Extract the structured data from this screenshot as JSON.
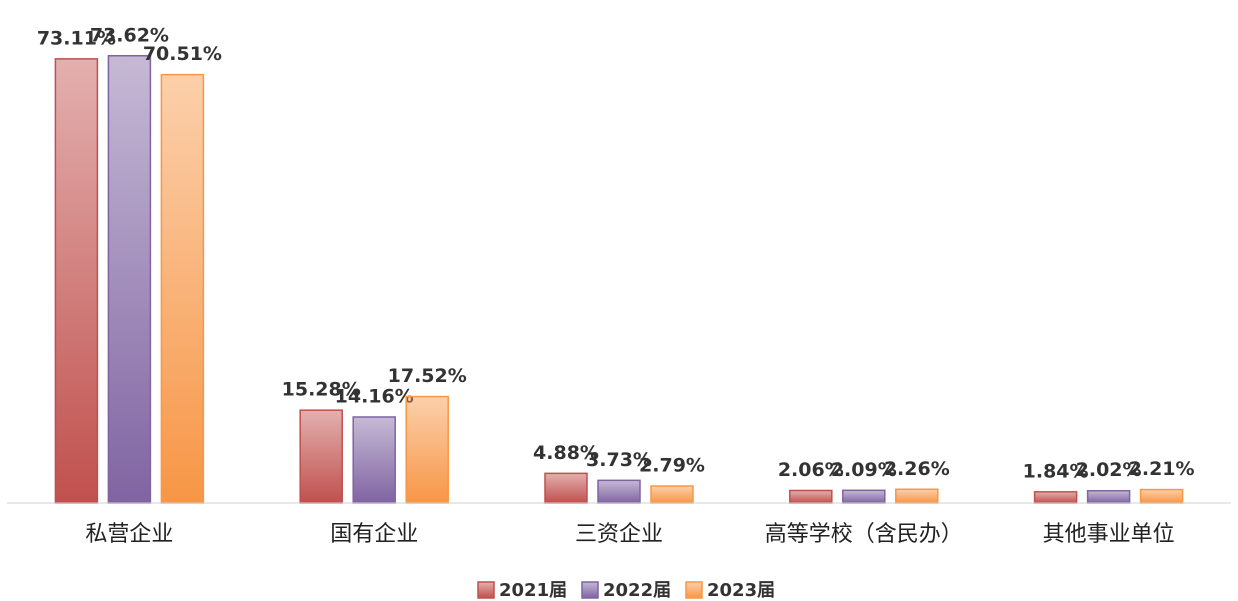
{
  "chart_data": {
    "type": "bar",
    "categories": [
      "私营企业",
      "国有企业",
      "三资企业",
      "高等学校（含民办）",
      "其他事业单位"
    ],
    "series": [
      {
        "name": "2021届",
        "color": "#c0504d",
        "values": [
          73.11,
          15.28,
          4.88,
          2.06,
          1.84
        ],
        "value_labels": [
          "73.11%",
          "15.28%",
          "4.88%",
          "2.06%",
          "1.84%"
        ]
      },
      {
        "name": "2022届",
        "color": "#8064a2",
        "values": [
          73.62,
          14.16,
          3.73,
          2.09,
          2.02
        ],
        "value_labels": [
          "73.62%",
          "14.16%",
          "3.73%",
          "2.09%",
          "2.02%"
        ]
      },
      {
        "name": "2023届",
        "color": "#f79646",
        "values": [
          70.51,
          17.52,
          2.79,
          2.26,
          2.21
        ],
        "value_labels": [
          "70.51%",
          "17.52%",
          "2.79%",
          "2.26%",
          "2.21%"
        ]
      }
    ],
    "ylim": [
      0,
      80
    ],
    "legend": "bottom"
  }
}
